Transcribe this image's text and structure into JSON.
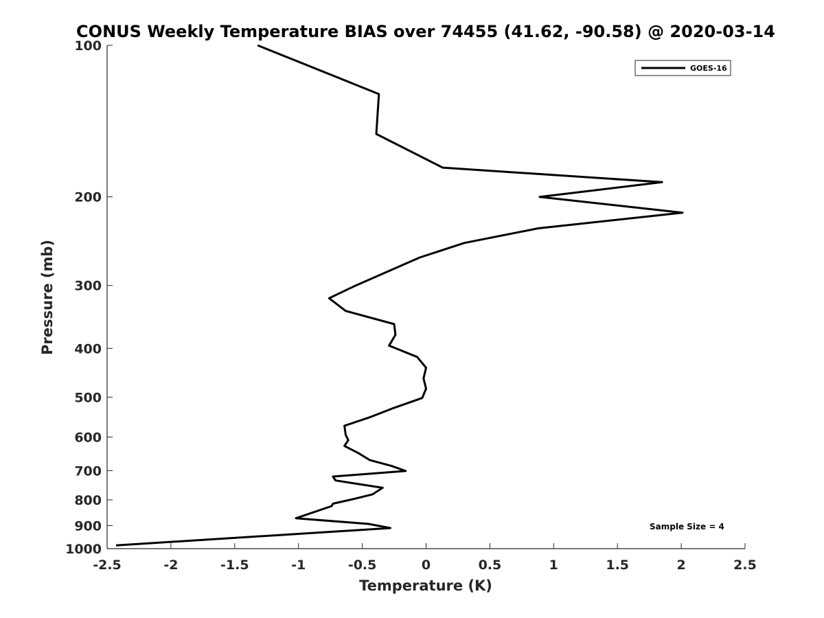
{
  "chart_data": {
    "type": "line",
    "title": "CONUS Weekly Temperature BIAS over 74455 (41.62, -90.58) @ 2020-03-14",
    "xlabel": "Temperature (K)",
    "ylabel": "Pressure (mb)",
    "xlim": [
      -2.5,
      2.5
    ],
    "ylim": [
      100,
      1000
    ],
    "y_scale": "log",
    "y_inverted": true,
    "x_ticks": [
      -2.5,
      -2,
      -1.5,
      -1,
      -0.5,
      0,
      0.5,
      1,
      1.5,
      2,
      2.5
    ],
    "x_tick_labels": [
      "-2.5",
      "-2",
      "-1.5",
      "-1",
      "-0.5",
      "0",
      "0.5",
      "1",
      "1.5",
      "2",
      "2.5"
    ],
    "y_ticks": [
      100,
      200,
      300,
      400,
      500,
      600,
      700,
      800,
      900,
      1000
    ],
    "y_tick_labels": [
      "100",
      "200",
      "300",
      "400",
      "500",
      "600",
      "700",
      "800",
      "900",
      "1000"
    ],
    "grid": false,
    "legend_position": "top-right",
    "line_color": "#000000",
    "series": [
      {
        "name": "GOES-16",
        "points": [
          {
            "x": -1.32,
            "p": 100
          },
          {
            "x": -0.37,
            "p": 125
          },
          {
            "x": -0.39,
            "p": 150
          },
          {
            "x": 0.13,
            "p": 175
          },
          {
            "x": 1.85,
            "p": 187
          },
          {
            "x": 0.89,
            "p": 200
          },
          {
            "x": 2.01,
            "p": 215
          },
          {
            "x": 0.88,
            "p": 231
          },
          {
            "x": 0.3,
            "p": 247
          },
          {
            "x": -0.05,
            "p": 264
          },
          {
            "x": -0.55,
            "p": 300
          },
          {
            "x": -0.76,
            "p": 318
          },
          {
            "x": -0.63,
            "p": 337
          },
          {
            "x": -0.25,
            "p": 358
          },
          {
            "x": -0.24,
            "p": 376
          },
          {
            "x": -0.29,
            "p": 395
          },
          {
            "x": -0.07,
            "p": 416
          },
          {
            "x": 0.0,
            "p": 437
          },
          {
            "x": -0.02,
            "p": 459
          },
          {
            "x": 0.0,
            "p": 481
          },
          {
            "x": -0.03,
            "p": 502
          },
          {
            "x": -0.25,
            "p": 525
          },
          {
            "x": -0.43,
            "p": 547
          },
          {
            "x": -0.64,
            "p": 570
          },
          {
            "x": -0.63,
            "p": 594
          },
          {
            "x": -0.61,
            "p": 609
          },
          {
            "x": -0.64,
            "p": 625
          },
          {
            "x": -0.53,
            "p": 646
          },
          {
            "x": -0.44,
            "p": 667
          },
          {
            "x": -0.27,
            "p": 685
          },
          {
            "x": -0.16,
            "p": 701
          },
          {
            "x": -0.73,
            "p": 719
          },
          {
            "x": -0.71,
            "p": 732
          },
          {
            "x": -0.34,
            "p": 757
          },
          {
            "x": -0.42,
            "p": 780
          },
          {
            "x": -0.57,
            "p": 797
          },
          {
            "x": -0.73,
            "p": 814
          },
          {
            "x": -0.74,
            "p": 823
          },
          {
            "x": -1.02,
            "p": 870
          },
          {
            "x": -0.45,
            "p": 893
          },
          {
            "x": -0.28,
            "p": 910
          },
          {
            "x": -2.43,
            "p": 985
          }
        ]
      }
    ],
    "annotation": "Sample Size = 4"
  }
}
